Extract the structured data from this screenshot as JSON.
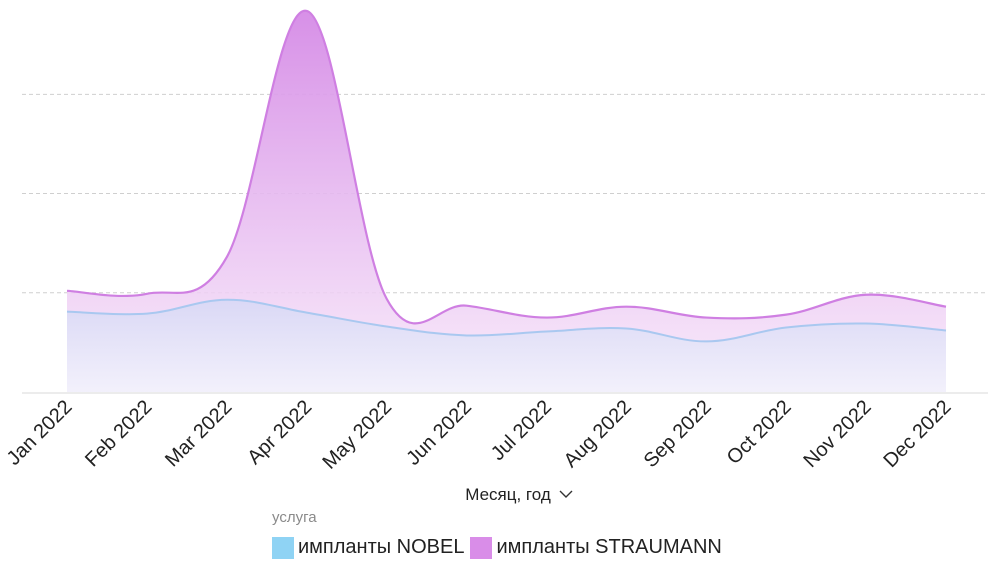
{
  "chart_data": {
    "type": "area",
    "stacked": true,
    "xlabel": "Месяц, год",
    "ylabel": "",
    "grid": true,
    "legend_position": "bottom",
    "legend_title": "услуга",
    "categories": [
      "Jan 2022",
      "Feb 2022",
      "Mar 2022",
      "Apr 2022",
      "May 2022",
      "Jun 2022",
      "Jul 2022",
      "Aug 2022",
      "Sep 2022",
      "Oct 2022",
      "Nov 2022",
      "Dec 2022"
    ],
    "ylim": [
      0,
      3.85
    ],
    "series": [
      {
        "name": "импланты NOBEL",
        "color": "#8fd3f4",
        "values": [
          0.81,
          0.79,
          0.93,
          0.8,
          0.66,
          0.57,
          0.61,
          0.64,
          0.51,
          0.65,
          0.69,
          0.62
        ]
      },
      {
        "name": "импланты STRAUMANN",
        "color": "#d98de8",
        "values": [
          0.21,
          0.2,
          0.43,
          3.04,
          0.28,
          0.3,
          0.14,
          0.22,
          0.24,
          0.13,
          0.29,
          0.24
        ]
      }
    ]
  }
}
